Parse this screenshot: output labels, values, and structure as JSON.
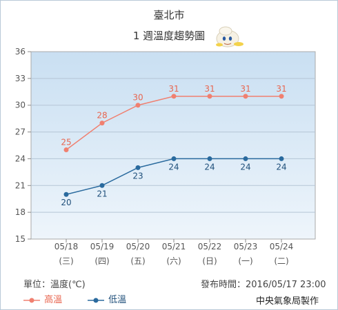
{
  "chart_data": {
    "type": "line",
    "title": "臺北市",
    "subtitle": "1 週溫度趨勢圖",
    "categories": [
      "05/18",
      "05/19",
      "05/20",
      "05/21",
      "05/22",
      "05/23",
      "05/24"
    ],
    "weekdays": [
      "(三)",
      "(四)",
      "(五)",
      "(六)",
      "(日)",
      "(一)",
      "(二)"
    ],
    "yticks": [
      15,
      18,
      21,
      24,
      27,
      30,
      33,
      36
    ],
    "ylim": [
      15,
      36
    ],
    "series": [
      {
        "name": "高溫",
        "color": "#f08070",
        "values": [
          25,
          28,
          30,
          31,
          31,
          31,
          31
        ]
      },
      {
        "name": "低溫",
        "color": "#2a6a9e",
        "values": [
          20,
          21,
          23,
          24,
          24,
          24,
          24
        ]
      }
    ],
    "grid": true,
    "legend": "bottom-left"
  },
  "footer": {
    "unit": "單位：溫度(℃)",
    "published": "發布時間：2016/05/17 23:00",
    "source": "中央氣象局製作"
  }
}
